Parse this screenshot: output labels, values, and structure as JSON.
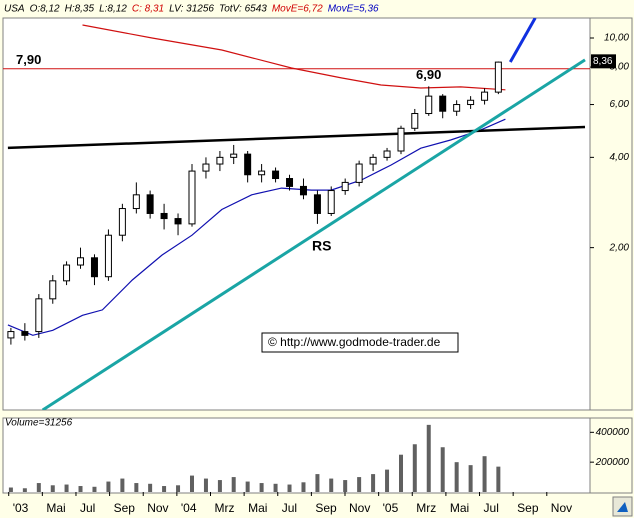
{
  "chart_data": {
    "type": "candlestick",
    "header": [
      {
        "text": "USA",
        "color": "#000"
      },
      {
        "text": "O:8,12",
        "color": "#000"
      },
      {
        "text": "H:8,35",
        "color": "#000"
      },
      {
        "text": "L:8,12",
        "color": "#000"
      },
      {
        "text": "C: 8,31",
        "color": "#d00000"
      },
      {
        "text": "LV: 31256",
        "color": "#000"
      },
      {
        "text": "TotV: 6543",
        "color": "#000"
      },
      {
        "text": "MovE=6,72",
        "color": "#d00000"
      },
      {
        "text": "MovE=5,36",
        "color": "#0000c0"
      }
    ],
    "log_scale": true,
    "xlim": [
      1.66,
      36.57
    ],
    "xticks": [
      {
        "value": 2,
        "label": "'03"
      },
      {
        "value": 4,
        "label": "Mai"
      },
      {
        "value": 6,
        "label": "Jul"
      },
      {
        "value": 8,
        "label": "Sep"
      },
      {
        "value": 10,
        "label": "Nov"
      },
      {
        "value": 12,
        "label": "'04"
      },
      {
        "value": 14,
        "label": "Mrz"
      },
      {
        "value": 16,
        "label": "Mai"
      },
      {
        "value": 18,
        "label": "Jul"
      },
      {
        "value": 20,
        "label": "Sep"
      },
      {
        "value": 22,
        "label": "Nov"
      },
      {
        "value": 24,
        "label": "'05"
      },
      {
        "value": 26,
        "label": "Mrz"
      },
      {
        "value": 28,
        "label": "Mai"
      },
      {
        "value": 30,
        "label": "Jul"
      },
      {
        "value": 32,
        "label": "Sep"
      },
      {
        "value": 34,
        "label": "Nov"
      }
    ],
    "ylim": [
      0.575,
      11.66
    ],
    "yticks": [
      {
        "value": 2,
        "label": "2,00"
      },
      {
        "value": 4,
        "label": "4,00"
      },
      {
        "value": 6,
        "label": "6,00"
      },
      {
        "value": 8,
        "label": "8,00"
      },
      {
        "value": 10,
        "label": "10,00"
      }
    ],
    "x": [
      2.13,
      2.96,
      3.79,
      4.62,
      5.44,
      6.27,
      7.1,
      7.93,
      8.76,
      9.59,
      10.41,
      11.24,
      12.07,
      12.9,
      13.73,
      14.56,
      15.38,
      16.21,
      17.04,
      17.87,
      18.7,
      19.53,
      20.36,
      21.18,
      22.01,
      22.84,
      23.67,
      24.5,
      25.33,
      26.15,
      26.98,
      27.81,
      28.64,
      29.47,
      30.3,
      31.12
    ],
    "open": [
      1.0,
      1.05,
      1.05,
      1.35,
      1.55,
      1.75,
      1.85,
      1.6,
      2.2,
      2.7,
      3.0,
      2.6,
      2.5,
      2.4,
      3.6,
      3.8,
      4.0,
      4.1,
      3.5,
      3.6,
      3.4,
      3.2,
      3.0,
      2.6,
      3.1,
      3.3,
      3.8,
      4.0,
      4.2,
      5.0,
      5.6,
      6.4,
      5.7,
      6.0,
      6.2,
      6.6
    ],
    "high": [
      1.08,
      1.12,
      1.4,
      1.62,
      1.8,
      2.0,
      1.9,
      2.3,
      2.8,
      3.3,
      3.1,
      2.8,
      2.6,
      3.8,
      4.0,
      4.2,
      4.4,
      4.2,
      3.8,
      3.7,
      3.5,
      3.4,
      3.1,
      3.2,
      3.4,
      3.9,
      4.1,
      4.3,
      5.1,
      5.8,
      6.9,
      6.5,
      6.2,
      6.4,
      6.8,
      8.35
    ],
    "low": [
      0.95,
      0.98,
      1.0,
      1.3,
      1.5,
      1.7,
      1.5,
      1.55,
      2.1,
      2.6,
      2.5,
      2.3,
      2.2,
      2.35,
      3.4,
      3.6,
      3.8,
      3.3,
      3.3,
      3.3,
      3.1,
      2.9,
      2.4,
      2.55,
      3.0,
      3.2,
      3.6,
      3.9,
      4.1,
      4.9,
      5.5,
      5.4,
      5.5,
      5.8,
      6.0,
      6.5
    ],
    "close": [
      1.05,
      1.02,
      1.35,
      1.55,
      1.75,
      1.85,
      1.6,
      2.2,
      2.7,
      3.0,
      2.6,
      2.5,
      2.4,
      3.6,
      3.8,
      4.0,
      4.1,
      3.5,
      3.6,
      3.4,
      3.2,
      3.0,
      2.6,
      3.1,
      3.3,
      3.8,
      4.0,
      4.2,
      5.0,
      5.6,
      6.4,
      5.7,
      6.0,
      6.2,
      6.6,
      8.31
    ],
    "candle_color": "#000000",
    "moving_averages": [
      {
        "color": "#d01010",
        "x": [
          6.39,
          10.53,
          14.67,
          18.82,
          21.78,
          24.14,
          26.51,
          28.88,
          31.54
        ],
        "values": [
          11.05,
          10.0,
          9.12,
          7.94,
          7.36,
          6.97,
          6.81,
          6.87,
          6.72
        ]
      },
      {
        "color": "#1010b0",
        "x": [
          1.95,
          3.43,
          4.62,
          6.39,
          7.57,
          9.35,
          11.12,
          12.9,
          14.67,
          16.45,
          18.22,
          20.0,
          21.18,
          22.96,
          24.73,
          26.51,
          28.28,
          30.06,
          31.54
        ],
        "values": [
          1.105,
          1.02,
          1.06,
          1.19,
          1.24,
          1.56,
          1.89,
          2.2,
          2.68,
          3.0,
          3.16,
          3.11,
          3.11,
          3.36,
          3.77,
          4.29,
          4.57,
          4.93,
          5.36
        ]
      }
    ],
    "trendlines": [
      {
        "color": "#000000",
        "width": 2.5,
        "x": [
          1.95,
          36.27
        ],
        "values": [
          4.3,
          5.05
        ]
      },
      {
        "color": "#1aa5a5",
        "width": 3,
        "x": [
          4.02,
          36.27
        ],
        "values": [
          0.575,
          8.45
        ]
      },
      {
        "color": "#1030e0",
        "width": 3,
        "x": [
          31.83,
          33.31
        ],
        "values": [
          8.32,
          11.66
        ]
      }
    ],
    "hline": {
      "label": "7,90",
      "value": 7.9,
      "color": "#d01010"
    },
    "level_label": {
      "label": "6,90",
      "value": 6.9
    },
    "pattern_label": "RS",
    "last_price": {
      "label": "8,36",
      "value": 8.36
    },
    "copyright": "© http://www.godmode-trader.de",
    "volume": {
      "title": "Volume=31256",
      "ylim": [
        0,
        496000
      ],
      "yticks": [
        200000,
        400000
      ],
      "color": "#606060",
      "values": [
        30000,
        25000,
        60000,
        45000,
        50000,
        40000,
        35000,
        70000,
        90000,
        60000,
        55000,
        40000,
        45000,
        110000,
        90000,
        80000,
        100000,
        70000,
        60000,
        55000,
        50000,
        65000,
        120000,
        90000,
        80000,
        100000,
        120000,
        150000,
        250000,
        320000,
        450000,
        300000,
        200000,
        180000,
        240000,
        170000
      ]
    }
  }
}
